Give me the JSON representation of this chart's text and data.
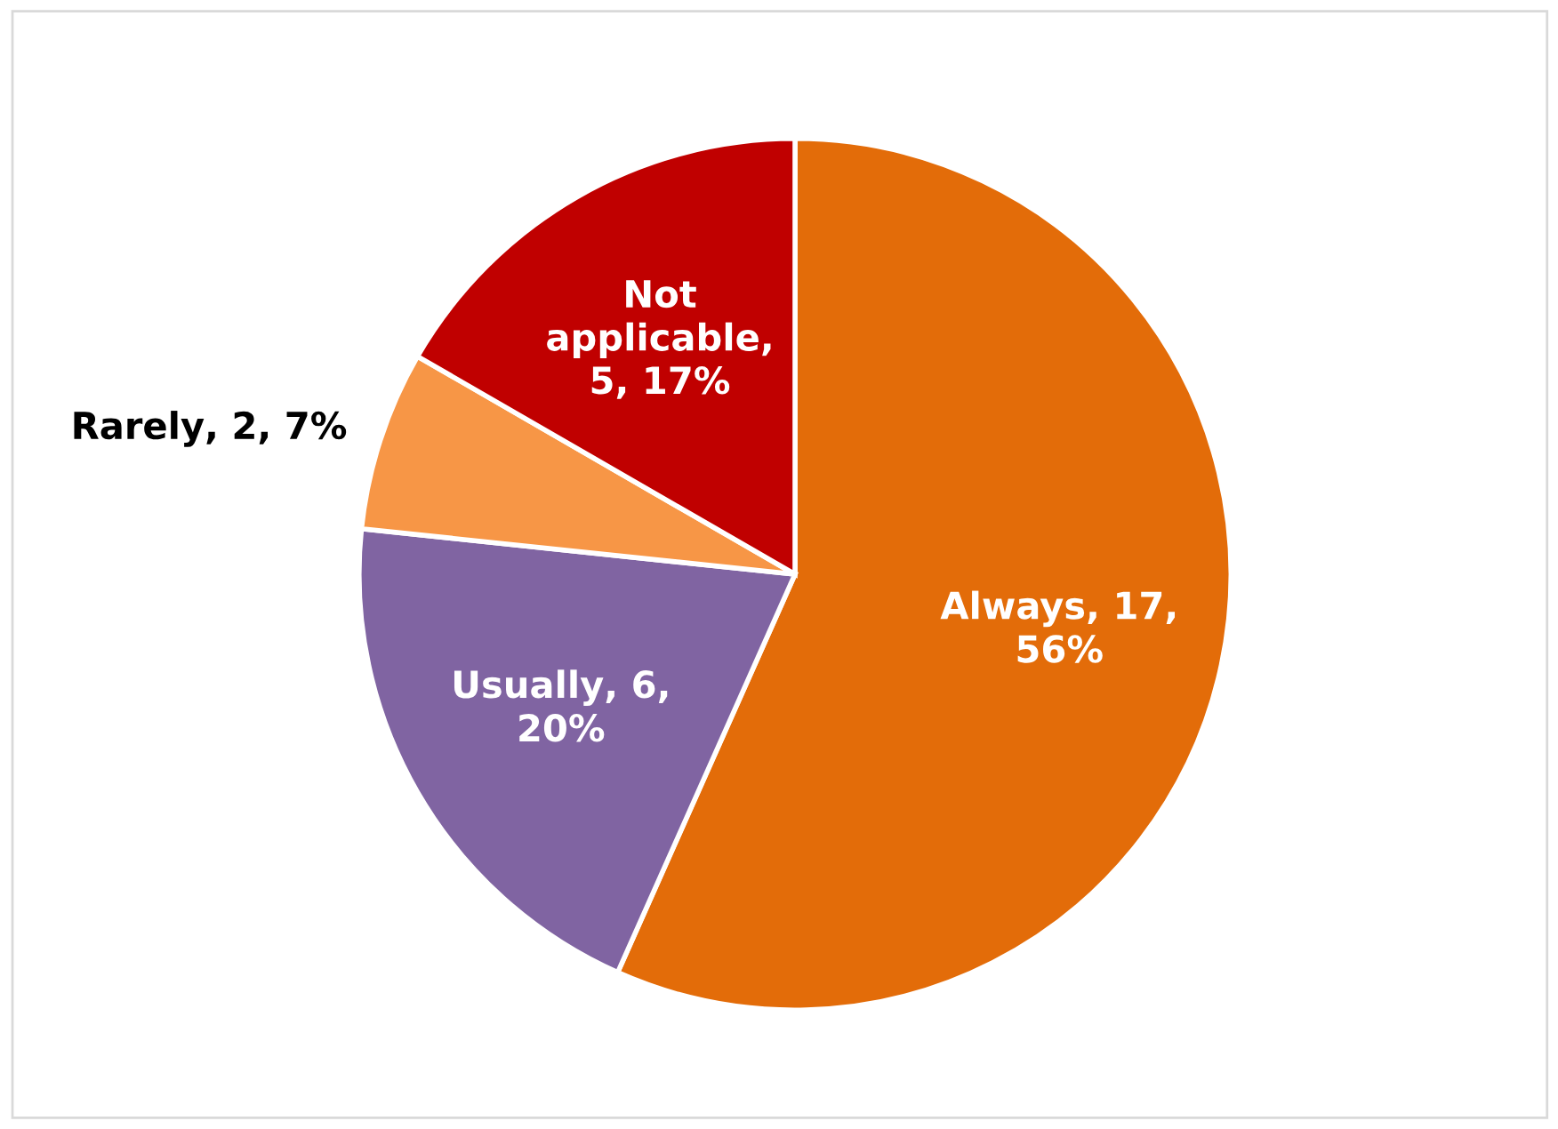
{
  "chart_data": {
    "type": "pie",
    "categories": [
      "Always",
      "Usually",
      "Rarely",
      "Not applicable"
    ],
    "values": [
      17,
      6,
      2,
      5
    ],
    "colors": [
      "#e36c09",
      "#8064a2",
      "#f79646",
      "#c00000"
    ],
    "value_labels": [
      ", 17, 56%",
      ", 6, 20%",
      ", 2, 7%",
      ", 5, 17%"
    ],
    "legend": false
  }
}
